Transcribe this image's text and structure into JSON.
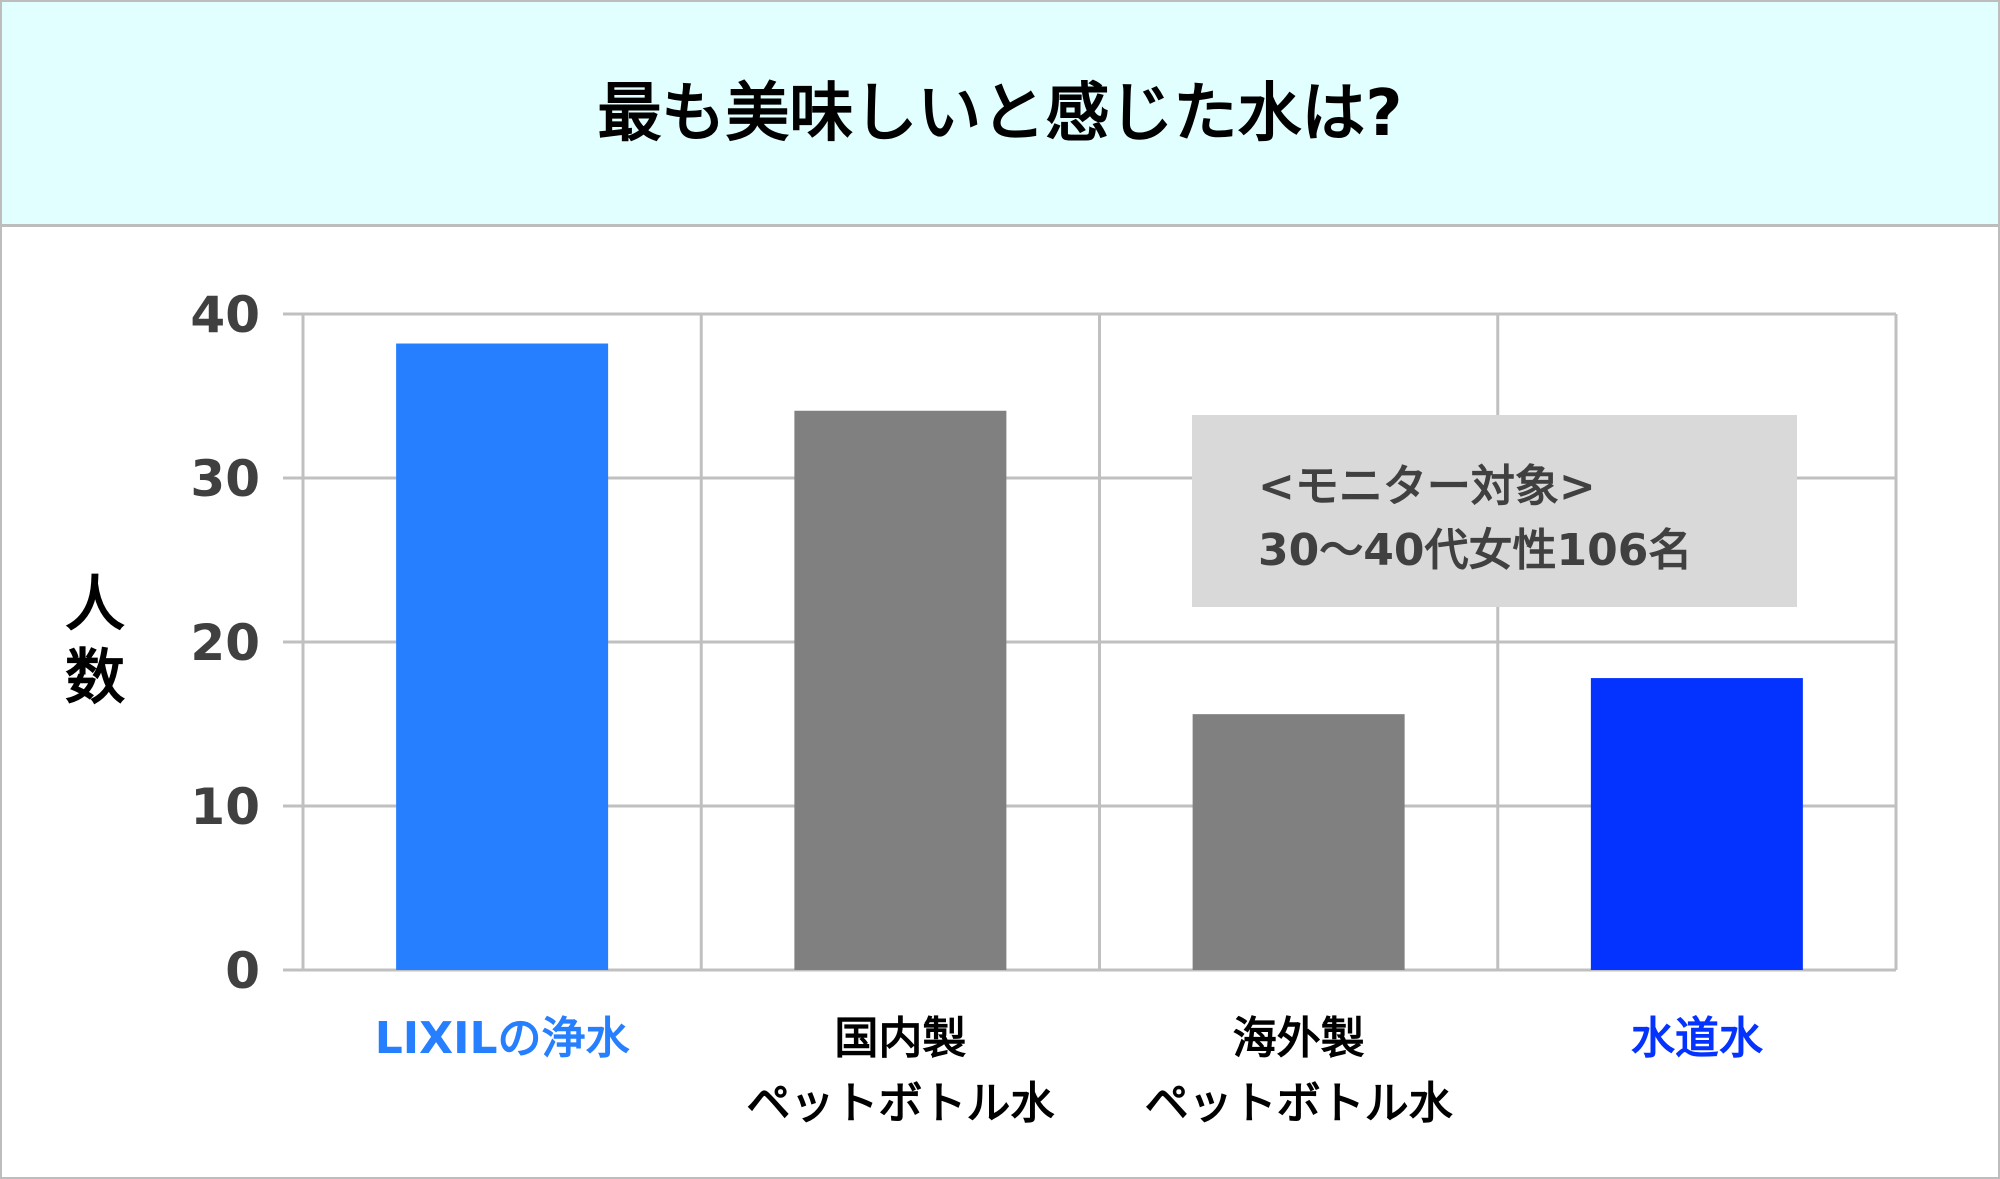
{
  "chart_data": {
    "type": "bar",
    "title": "最も美味しいと感じた水は?",
    "ylabel": "人数",
    "xlabel": "",
    "ylim": [
      0,
      40
    ],
    "yticks": [
      0,
      10,
      20,
      30,
      40
    ],
    "grid": true,
    "categories": [
      [
        "LIXILの浄水"
      ],
      [
        "国内製",
        "ペットボトル水"
      ],
      [
        "海外製",
        "ペットボトル水"
      ],
      [
        "水道水"
      ]
    ],
    "values": [
      38.2,
      34.1,
      15.6,
      17.8
    ],
    "colors": [
      "#257ffe",
      "#808080",
      "#808080",
      "#0433ff"
    ],
    "label_colors": [
      "#257ffe",
      "#000000",
      "#000000",
      "#0433ff"
    ],
    "annotation": [
      "<モニター対象>",
      "30～40代女性106名"
    ]
  }
}
